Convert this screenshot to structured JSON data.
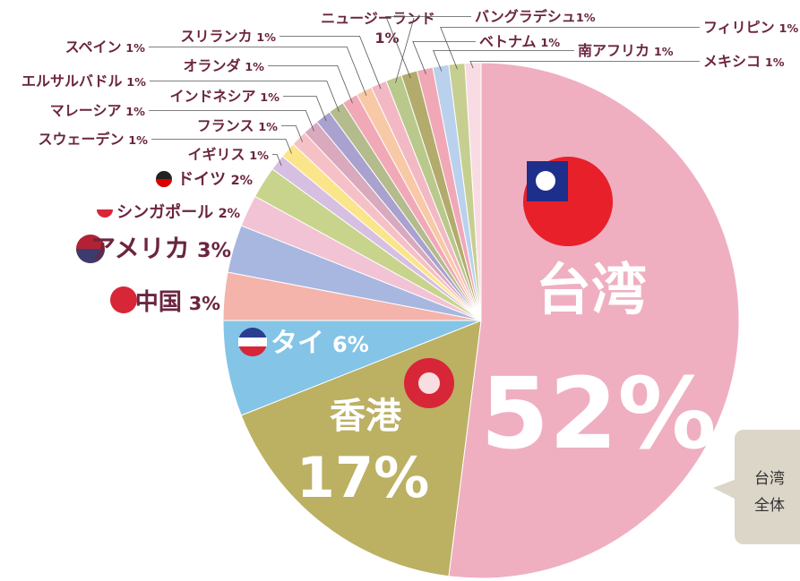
{
  "chart_data": {
    "type": "pie",
    "categories": [
      "台湾",
      "香港",
      "タイ",
      "中国",
      "アメリカ",
      "シンガポール",
      "ドイツ",
      "イギリス",
      "スウェーデン",
      "フランス",
      "マレーシア",
      "インドネシア",
      "エルサルバドル",
      "オランダ",
      "スペイン",
      "スリランカ",
      "ニュージーランド",
      "バングラデシュ",
      "ベトナム",
      "南アフリカ",
      "フィリピン",
      "メキシコ"
    ],
    "values": [
      52,
      17,
      6,
      3,
      3,
      2,
      2,
      1,
      1,
      1,
      1,
      1,
      1,
      1,
      1,
      1,
      1,
      1,
      1,
      1,
      1,
      1
    ],
    "value_labels": [
      "52%",
      "17%",
      "6%",
      "3%",
      "3%",
      "2%",
      "2%",
      "1%",
      "1%",
      "1%",
      "1%",
      "1%",
      "1%",
      "1%",
      "1%",
      "1%",
      "1%",
      "1%",
      "1%",
      "1%",
      "1%",
      "1%"
    ],
    "colors": [
      "#efafc1",
      "#bcb063",
      "#84c4e6",
      "#f4b3ab",
      "#a8b7e0",
      "#f2c3d4",
      "#c8d48c",
      "#d6bfe0",
      "#fbe58a",
      "#f6c1c6",
      "#d9a9be",
      "#a9a2cf",
      "#b4bb8c",
      "#f1a9b8",
      "#f7c9a6",
      "#f2b9c5",
      "#b9c98c",
      "#b3ab6c",
      "#f0a8b7",
      "#b9d1ec",
      "#c7cf90",
      "#f9dbe3"
    ],
    "annotation": [
      "台湾",
      "全体"
    ]
  }
}
